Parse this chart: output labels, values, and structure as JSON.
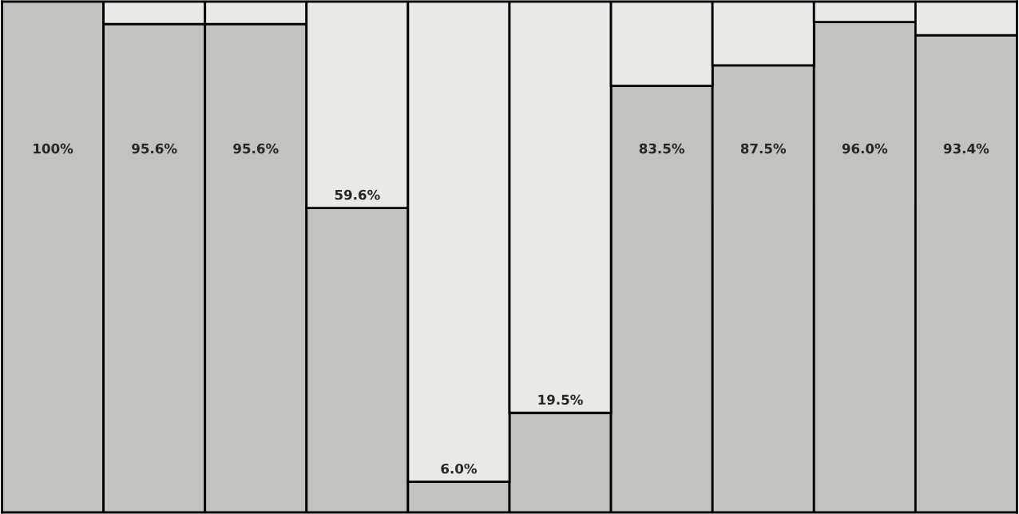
{
  "chart_data": {
    "type": "bar",
    "stacked": true,
    "categories": [
      null,
      null,
      null,
      null,
      null,
      null,
      null,
      null,
      null,
      null
    ],
    "series": [
      {
        "color": "#c2c2be",
        "values": [
          100,
          95.6,
          95.6,
          59.6,
          6.0,
          19.5,
          83.5,
          87.5,
          96.0,
          93.4
        ],
        "value_labels": [
          "100%",
          "95.6%",
          "95.6%",
          "59.6%",
          "6.0%",
          "19.5%",
          "83.5%",
          "87.5%",
          "96.0%",
          "93.4%"
        ]
      },
      {
        "color": "#e9e9e5",
        "values": [
          0,
          4.4,
          4.4,
          40.4,
          94.0,
          80.5,
          16.5,
          12.5,
          4.0,
          6.6
        ]
      }
    ],
    "ylim": [
      0,
      100
    ],
    "legend": false
  }
}
